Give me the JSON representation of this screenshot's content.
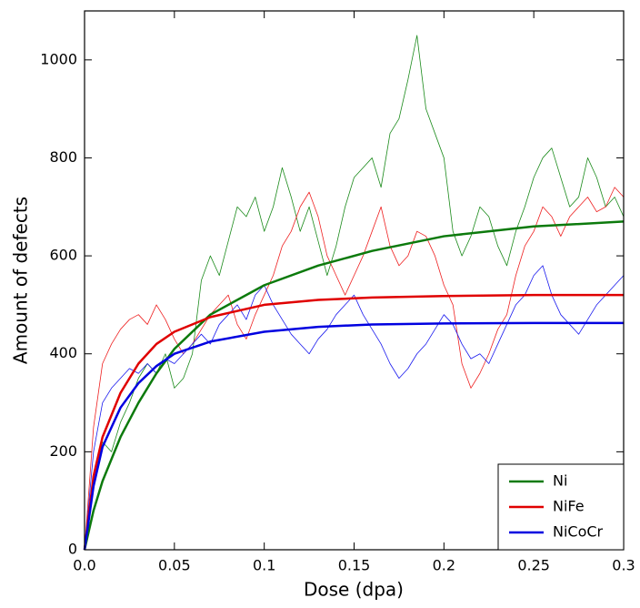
{
  "chart_data": {
    "type": "line",
    "x_label": "Dose (dpa)",
    "y_label": "Amount of defects",
    "xlim": [
      0,
      0.3
    ],
    "ylim": [
      0,
      1100
    ],
    "xticks": [
      {
        "value": 0,
        "label": "0.0"
      },
      0.05,
      0.1,
      0.15,
      0.2,
      0.25,
      0.3
    ],
    "yticks": [
      0,
      200,
      400,
      600,
      800,
      1000
    ],
    "legend": "lower right",
    "series": [
      {
        "color": "#1a8a1a",
        "x": [
          0,
          0.005,
          0.01,
          0.015,
          0.02,
          0.025,
          0.03,
          0.035,
          0.04,
          0.045,
          0.05,
          0.055,
          0.06,
          0.065,
          0.07,
          0.075,
          0.08,
          0.085,
          0.09,
          0.095,
          0.1,
          0.105,
          0.11,
          0.115,
          0.12,
          0.125,
          0.13,
          0.135,
          0.14,
          0.145,
          0.15,
          0.155,
          0.16,
          0.165,
          0.17,
          0.175,
          0.18,
          0.185,
          0.19,
          0.195,
          0.2,
          0.205,
          0.21,
          0.215,
          0.22,
          0.225,
          0.23,
          0.235,
          0.24,
          0.245,
          0.25,
          0.255,
          0.26,
          0.265,
          0.27,
          0.275,
          0.28,
          0.285,
          0.29,
          0.295,
          0.3
        ],
        "values": [
          0,
          150,
          220,
          200,
          260,
          300,
          350,
          380,
          360,
          400,
          330,
          350,
          400,
          550,
          600,
          560,
          630,
          700,
          680,
          720,
          650,
          700,
          780,
          720,
          650,
          700,
          630,
          560,
          620,
          700,
          760,
          780,
          800,
          740,
          850,
          880,
          960,
          1050,
          900,
          850,
          800,
          650,
          600,
          640,
          700,
          680,
          620,
          580,
          650,
          700,
          760,
          800,
          820,
          760,
          700,
          720,
          800,
          760,
          700,
          720,
          680
        ]
      },
      {
        "color": "#ee2020",
        "x": [
          0,
          0.005,
          0.01,
          0.015,
          0.02,
          0.025,
          0.03,
          0.035,
          0.04,
          0.045,
          0.05,
          0.055,
          0.06,
          0.065,
          0.07,
          0.075,
          0.08,
          0.085,
          0.09,
          0.095,
          0.1,
          0.105,
          0.11,
          0.115,
          0.12,
          0.125,
          0.13,
          0.135,
          0.14,
          0.145,
          0.15,
          0.155,
          0.16,
          0.165,
          0.17,
          0.175,
          0.18,
          0.185,
          0.19,
          0.195,
          0.2,
          0.205,
          0.21,
          0.215,
          0.22,
          0.225,
          0.23,
          0.235,
          0.24,
          0.245,
          0.25,
          0.255,
          0.26,
          0.265,
          0.27,
          0.275,
          0.28,
          0.285,
          0.29,
          0.295,
          0.3
        ],
        "values": [
          0,
          250,
          380,
          420,
          450,
          470,
          480,
          460,
          500,
          470,
          430,
          400,
          420,
          450,
          480,
          500,
          520,
          460,
          430,
          480,
          520,
          560,
          620,
          650,
          700,
          730,
          680,
          600,
          560,
          520,
          560,
          600,
          650,
          700,
          620,
          580,
          600,
          650,
          640,
          600,
          540,
          500,
          380,
          330,
          360,
          400,
          450,
          480,
          560,
          620,
          650,
          700,
          680,
          640,
          680,
          700,
          720,
          690,
          700,
          740,
          720
        ]
      },
      {
        "color": "#1a1aee",
        "x": [
          0,
          0.005,
          0.01,
          0.015,
          0.02,
          0.025,
          0.03,
          0.035,
          0.04,
          0.045,
          0.05,
          0.055,
          0.06,
          0.065,
          0.07,
          0.075,
          0.08,
          0.085,
          0.09,
          0.095,
          0.1,
          0.105,
          0.11,
          0.115,
          0.12,
          0.125,
          0.13,
          0.135,
          0.14,
          0.145,
          0.15,
          0.155,
          0.16,
          0.165,
          0.17,
          0.175,
          0.18,
          0.185,
          0.19,
          0.195,
          0.2,
          0.205,
          0.21,
          0.215,
          0.22,
          0.225,
          0.23,
          0.235,
          0.24,
          0.245,
          0.25,
          0.255,
          0.26,
          0.265,
          0.27,
          0.275,
          0.28,
          0.285,
          0.29,
          0.295,
          0.3
        ],
        "values": [
          0,
          200,
          300,
          330,
          350,
          370,
          360,
          380,
          360,
          390,
          380,
          400,
          420,
          440,
          420,
          460,
          480,
          500,
          470,
          520,
          540,
          500,
          470,
          440,
          420,
          400,
          430,
          450,
          480,
          500,
          520,
          480,
          450,
          420,
          380,
          350,
          370,
          400,
          420,
          450,
          480,
          460,
          420,
          390,
          400,
          380,
          420,
          460,
          500,
          520,
          560,
          580,
          520,
          480,
          460,
          440,
          470,
          500,
          520,
          540,
          560
        ]
      },
      {
        "name": "Ni",
        "color": "#0c7a0c",
        "x": [
          0,
          0.005,
          0.01,
          0.02,
          0.03,
          0.04,
          0.05,
          0.07,
          0.1,
          0.13,
          0.16,
          0.2,
          0.25,
          0.3
        ],
        "values": [
          0,
          80,
          140,
          230,
          300,
          360,
          410,
          480,
          540,
          580,
          610,
          640,
          660,
          670
        ]
      },
      {
        "name": "NiFe",
        "color": "#e00000",
        "x": [
          0,
          0.005,
          0.01,
          0.02,
          0.03,
          0.04,
          0.05,
          0.07,
          0.1,
          0.13,
          0.16,
          0.2,
          0.25,
          0.3
        ],
        "values": [
          0,
          150,
          230,
          320,
          380,
          420,
          445,
          475,
          500,
          510,
          515,
          518,
          520,
          520
        ]
      },
      {
        "name": "NiCoCr",
        "color": "#0000e0",
        "x": [
          0,
          0.005,
          0.01,
          0.02,
          0.03,
          0.04,
          0.05,
          0.07,
          0.1,
          0.13,
          0.16,
          0.2,
          0.25,
          0.3
        ],
        "values": [
          0,
          130,
          210,
          290,
          340,
          375,
          400,
          425,
          445,
          455,
          460,
          462,
          463,
          463
        ]
      }
    ]
  }
}
